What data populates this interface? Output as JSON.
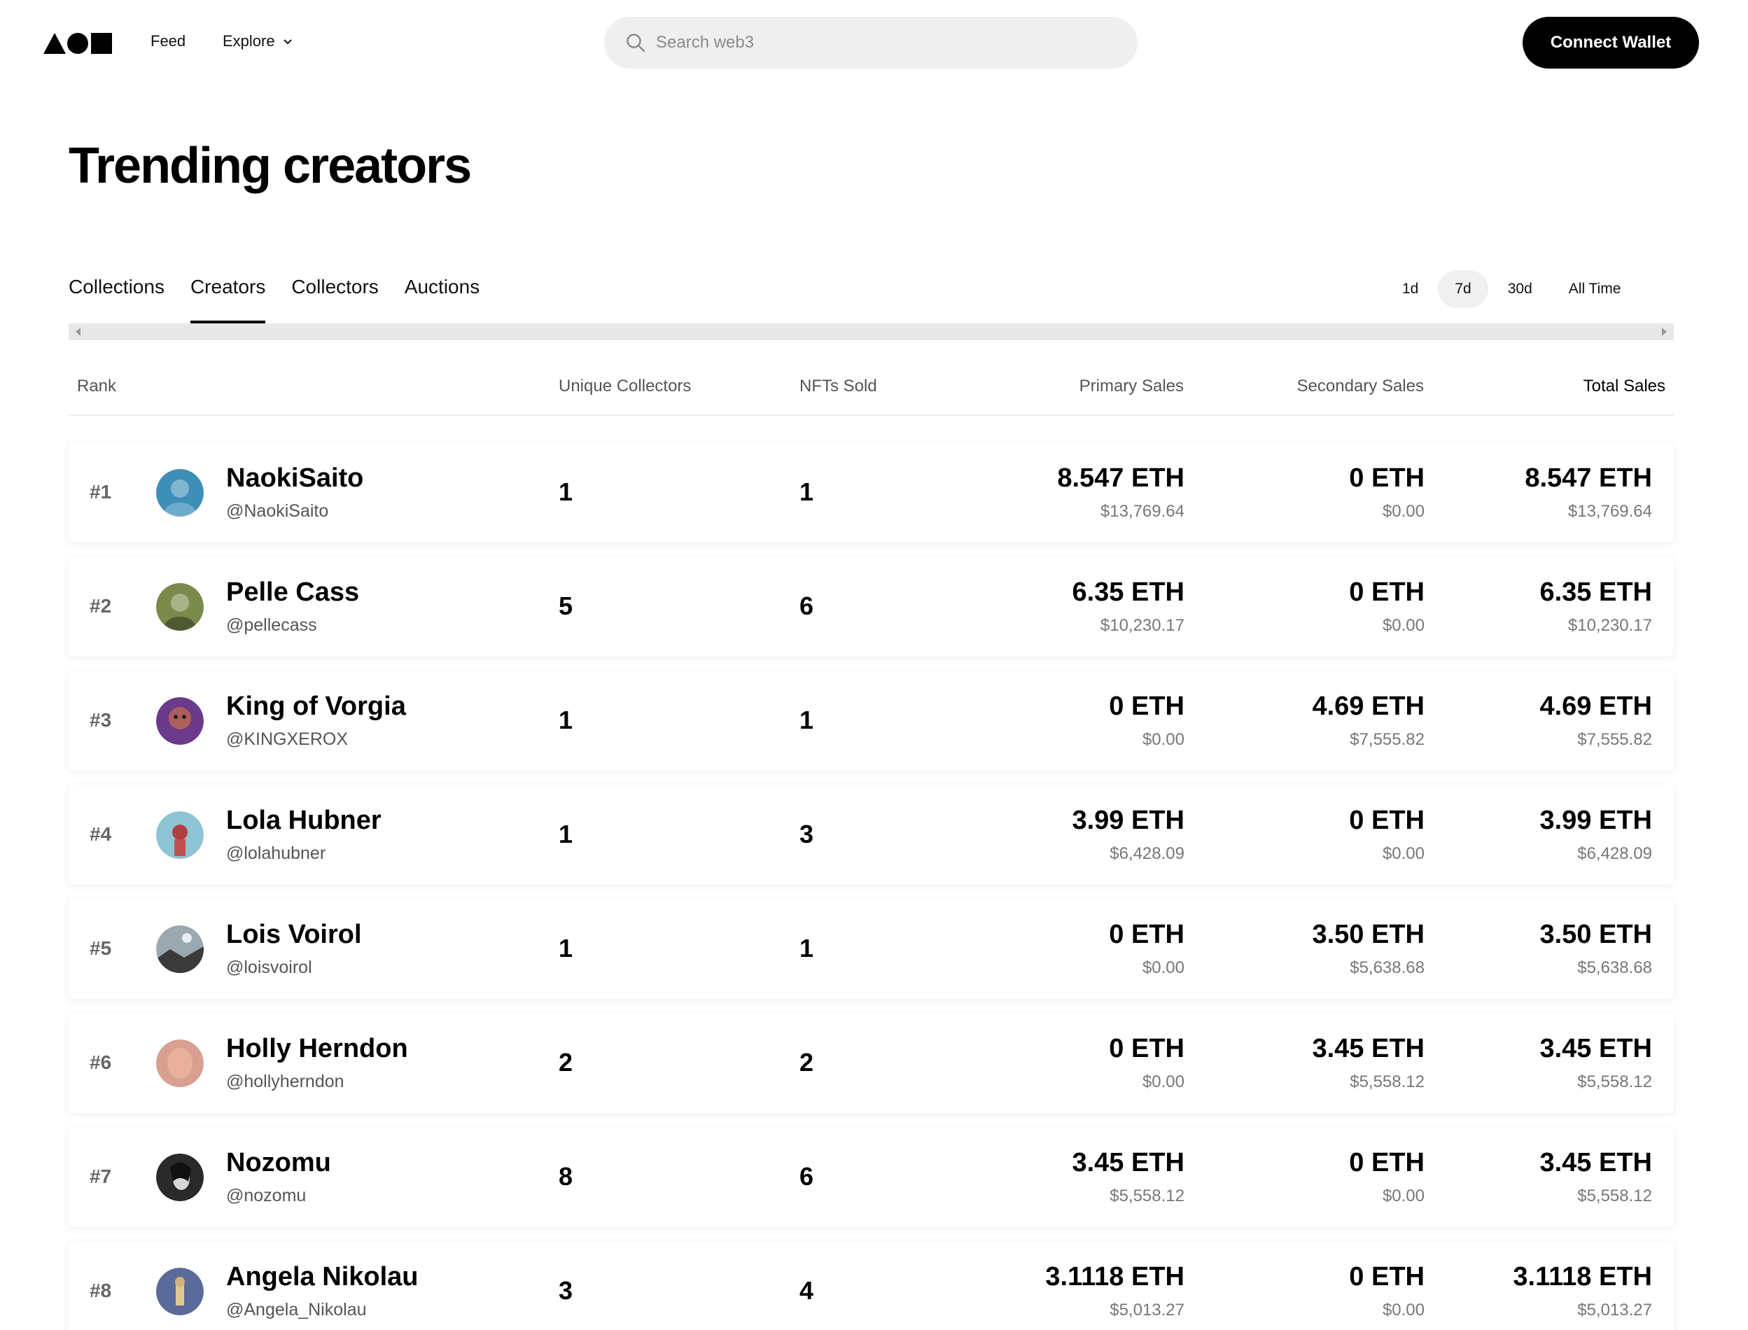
{
  "header": {
    "feed_label": "Feed",
    "explore_label": "Explore",
    "search_placeholder": "Search web3",
    "connect_label": "Connect Wallet"
  },
  "page": {
    "title": "Trending creators"
  },
  "tabs": [
    {
      "label": "Collections",
      "active": false
    },
    {
      "label": "Creators",
      "active": true
    },
    {
      "label": "Collectors",
      "active": false
    },
    {
      "label": "Auctions",
      "active": false
    }
  ],
  "periods": [
    {
      "label": "1d",
      "active": false
    },
    {
      "label": "7d",
      "active": true
    },
    {
      "label": "30d",
      "active": false
    },
    {
      "label": "All Time",
      "active": false
    }
  ],
  "columns": {
    "rank": "Rank",
    "unique_collectors": "Unique Collectors",
    "nfts_sold": "NFTs Sold",
    "primary_sales": "Primary Sales",
    "secondary_sales": "Secondary Sales",
    "total_sales": "Total Sales"
  },
  "creators": [
    {
      "rank": "#1",
      "name": "NaokiSaito",
      "handle": "@NaokiSaito",
      "collectors": "1",
      "nfts": "1",
      "primary_eth": "8.547 ETH",
      "primary_usd": "$13,769.64",
      "secondary_eth": "0 ETH",
      "secondary_usd": "$0.00",
      "total_eth": "8.547 ETH",
      "total_usd": "$13,769.64",
      "avatar_color": "#3d8fb8"
    },
    {
      "rank": "#2",
      "name": "Pelle Cass",
      "handle": "@pellecass",
      "collectors": "5",
      "nfts": "6",
      "primary_eth": "6.35 ETH",
      "primary_usd": "$10,230.17",
      "secondary_eth": "0 ETH",
      "secondary_usd": "$0.00",
      "total_eth": "6.35 ETH",
      "total_usd": "$10,230.17",
      "avatar_color": "#7a8a4a"
    },
    {
      "rank": "#3",
      "name": "King of Vorgia",
      "handle": "@KINGXEROX",
      "collectors": "1",
      "nfts": "1",
      "primary_eth": "0 ETH",
      "primary_usd": "$0.00",
      "secondary_eth": "4.69 ETH",
      "secondary_usd": "$7,555.82",
      "total_eth": "4.69 ETH",
      "total_usd": "$7,555.82",
      "avatar_color": "#6b3a8a"
    },
    {
      "rank": "#4",
      "name": "Lola Hubner",
      "handle": "@lolahubner",
      "collectors": "1",
      "nfts": "3",
      "primary_eth": "3.99 ETH",
      "primary_usd": "$6,428.09",
      "secondary_eth": "0 ETH",
      "secondary_usd": "$0.00",
      "total_eth": "3.99 ETH",
      "total_usd": "$6,428.09",
      "avatar_color": "#8fc4d4"
    },
    {
      "rank": "#5",
      "name": "Lois Voirol",
      "handle": "@loisvoirol",
      "collectors": "1",
      "nfts": "1",
      "primary_eth": "0 ETH",
      "primary_usd": "$0.00",
      "secondary_eth": "3.50 ETH",
      "secondary_usd": "$5,638.68",
      "total_eth": "3.50 ETH",
      "total_usd": "$5,638.68",
      "avatar_color": "#9aa8b0"
    },
    {
      "rank": "#6",
      "name": "Holly Herndon",
      "handle": "@hollyherndon",
      "collectors": "2",
      "nfts": "2",
      "primary_eth": "0 ETH",
      "primary_usd": "$0.00",
      "secondary_eth": "3.45 ETH",
      "secondary_usd": "$5,558.12",
      "total_eth": "3.45 ETH",
      "total_usd": "$5,558.12",
      "avatar_color": "#d8a090"
    },
    {
      "rank": "#7",
      "name": "Nozomu",
      "handle": "@nozomu",
      "collectors": "8",
      "nfts": "6",
      "primary_eth": "3.45 ETH",
      "primary_usd": "$5,558.12",
      "secondary_eth": "0 ETH",
      "secondary_usd": "$0.00",
      "total_eth": "3.45 ETH",
      "total_usd": "$5,558.12",
      "avatar_color": "#2a2a2a"
    },
    {
      "rank": "#8",
      "name": "Angela Nikolau",
      "handle": "@Angela_Nikolau",
      "collectors": "3",
      "nfts": "4",
      "primary_eth": "3.1118 ETH",
      "primary_usd": "$5,013.27",
      "secondary_eth": "0 ETH",
      "secondary_usd": "$0.00",
      "total_eth": "3.1118 ETH",
      "total_usd": "$5,013.27",
      "avatar_color": "#5a6a9a"
    }
  ]
}
